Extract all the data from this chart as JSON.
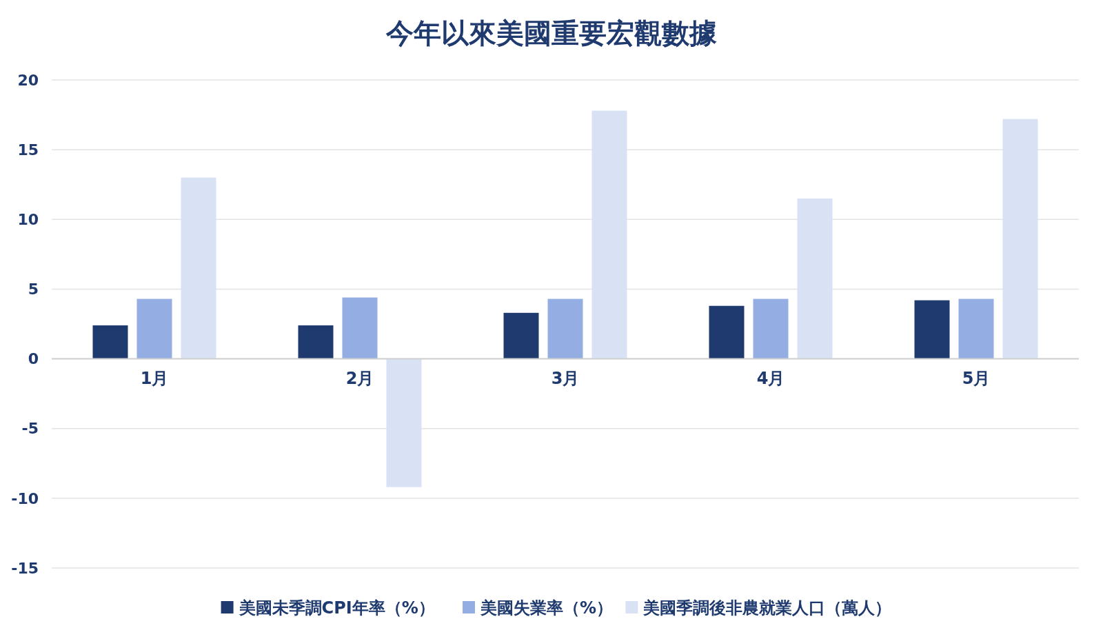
{
  "chart_data": {
    "type": "bar",
    "title": "今年以來美國重要宏觀數據",
    "categories": [
      "1月",
      "2月",
      "3月",
      "4月",
      "5月"
    ],
    "series": [
      {
        "name": "美國未季調CPI年率（%）",
        "color": "#1f3a6e",
        "values": [
          2.4,
          2.4,
          3.3,
          3.8,
          4.2
        ]
      },
      {
        "name": "美國失業率（%）",
        "color": "#94aee3",
        "values": [
          4.3,
          4.4,
          4.3,
          4.3,
          4.3
        ]
      },
      {
        "name": "美國季調後非農就業人口（萬人）",
        "color": "#d9e2f4",
        "values": [
          13.0,
          -9.2,
          17.8,
          11.5,
          17.2
        ]
      }
    ],
    "ylim": [
      -15,
      20
    ],
    "yticks": [
      -15,
      -10,
      -5,
      0,
      5,
      10,
      15,
      20
    ],
    "grid": "y",
    "legend": "bottom"
  }
}
